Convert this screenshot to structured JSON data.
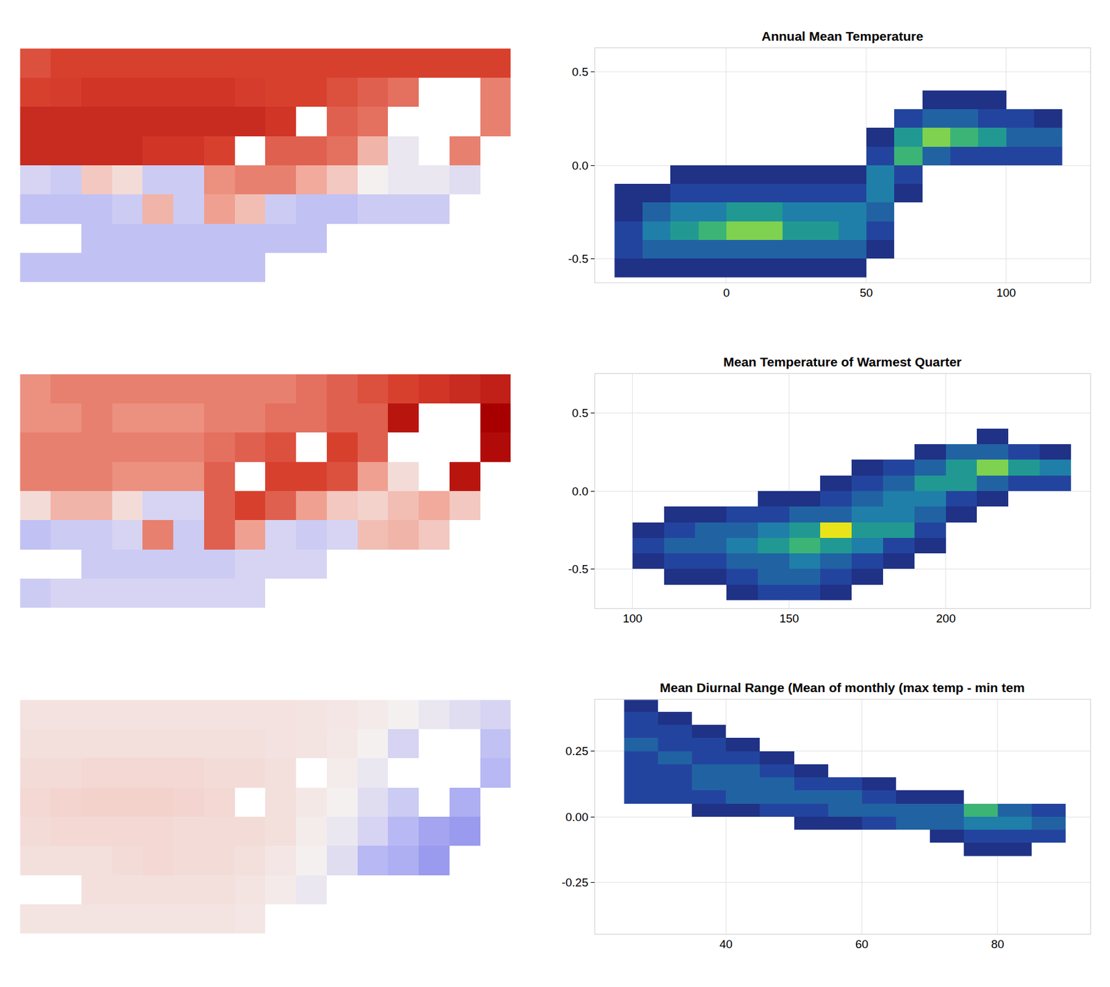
{
  "chart_data": [
    {
      "type": "map",
      "tick_labels": false,
      "grid": false,
      "zlim": [
        -1,
        1
      ],
      "cells": [
        [
          0.65,
          0.7,
          0.7,
          0.7,
          0.7,
          0.7,
          0.7,
          0.7,
          0.7,
          0.7,
          0.7,
          0.7,
          0.7,
          0.7,
          0.7,
          0.7
        ],
        [
          0.7,
          0.72,
          0.75,
          0.75,
          0.75,
          0.75,
          0.75,
          0.72,
          0.7,
          0.7,
          0.65,
          0.6,
          0.55,
          null,
          null,
          0.5
        ],
        [
          0.8,
          0.8,
          0.8,
          0.8,
          0.8,
          0.8,
          0.8,
          0.8,
          0.75,
          null,
          0.6,
          0.55,
          null,
          null,
          null,
          0.5
        ],
        [
          0.8,
          0.8,
          0.8,
          0.8,
          0.75,
          0.75,
          0.7,
          null,
          0.6,
          0.6,
          0.55,
          0.3,
          -0.05,
          null,
          0.5,
          null
        ],
        [
          -0.15,
          -0.2,
          0.2,
          0.1,
          -0.2,
          -0.2,
          0.45,
          0.5,
          0.5,
          0.35,
          0.2,
          0.0,
          -0.05,
          -0.05,
          -0.1,
          null
        ],
        [
          -0.25,
          -0.25,
          -0.25,
          -0.2,
          0.3,
          -0.2,
          0.4,
          0.25,
          -0.2,
          -0.25,
          -0.25,
          -0.2,
          -0.2,
          -0.2,
          null,
          null
        ],
        [
          null,
          null,
          -0.25,
          -0.25,
          -0.25,
          -0.25,
          -0.25,
          -0.25,
          -0.25,
          -0.25,
          null,
          null,
          null,
          null,
          null,
          null
        ],
        [
          -0.25,
          -0.25,
          -0.25,
          -0.25,
          -0.25,
          -0.25,
          -0.25,
          -0.25,
          null,
          null,
          null,
          null,
          null,
          null,
          null,
          null
        ]
      ]
    },
    {
      "type": "density",
      "title": "Annual Mean Temperature",
      "grid": true,
      "zlim": [
        0,
        8
      ],
      "xlim": [
        -47,
        130
      ],
      "ylim": [
        -0.625,
        0.625
      ],
      "xticks": [
        0,
        50,
        100
      ],
      "yticks": [
        -0.5,
        {
          "value": 0,
          "label": "0.0"
        },
        0.5
      ],
      "x": [
        -35,
        -25,
        -15,
        -5,
        5,
        15,
        25,
        35,
        45,
        55,
        65,
        75,
        85,
        95,
        105,
        115
      ],
      "y": [
        -0.55,
        -0.45,
        -0.35,
        -0.25,
        -0.15,
        -0.05,
        0.05,
        0.15,
        0.25,
        0.35
      ],
      "cells": [
        [
          1,
          1,
          1,
          1,
          1,
          1,
          1,
          1,
          1,
          null,
          null,
          null,
          null,
          null,
          null,
          null
        ],
        [
          2,
          3,
          3,
          3,
          3,
          3,
          3,
          3,
          3,
          1,
          null,
          null,
          null,
          null,
          null,
          null
        ],
        [
          2,
          4,
          5,
          6,
          7,
          7,
          5,
          5,
          4,
          2,
          null,
          null,
          null,
          null,
          null,
          null
        ],
        [
          1,
          3,
          4,
          4,
          5,
          5,
          4,
          4,
          4,
          3,
          null,
          null,
          null,
          null,
          null,
          null
        ],
        [
          1,
          1,
          2,
          2,
          2,
          2,
          2,
          2,
          2,
          4,
          1,
          null,
          null,
          null,
          null,
          null
        ],
        [
          null,
          null,
          1,
          1,
          1,
          1,
          1,
          1,
          1,
          4,
          2,
          null,
          null,
          null,
          null,
          null
        ],
        [
          null,
          null,
          null,
          null,
          null,
          null,
          null,
          null,
          null,
          2,
          6,
          3,
          2,
          2,
          2,
          2
        ],
        [
          null,
          null,
          null,
          null,
          null,
          null,
          null,
          null,
          null,
          1,
          5,
          7,
          6,
          5,
          3,
          3
        ],
        [
          null,
          null,
          null,
          null,
          null,
          null,
          null,
          null,
          null,
          null,
          2,
          3,
          3,
          2,
          2,
          1
        ],
        [
          null,
          null,
          null,
          null,
          null,
          null,
          null,
          null,
          null,
          null,
          null,
          1,
          1,
          1,
          null,
          null
        ]
      ]
    },
    {
      "type": "map",
      "tick_labels": false,
      "grid": false,
      "zlim": [
        -1,
        1
      ],
      "cells": [
        [
          0.45,
          0.5,
          0.5,
          0.5,
          0.5,
          0.5,
          0.5,
          0.5,
          0.5,
          0.55,
          0.6,
          0.65,
          0.7,
          0.75,
          0.8,
          0.85
        ],
        [
          0.45,
          0.45,
          0.5,
          0.45,
          0.45,
          0.45,
          0.5,
          0.5,
          0.55,
          0.55,
          0.6,
          0.6,
          0.9,
          null,
          null,
          1.0
        ],
        [
          0.5,
          0.5,
          0.5,
          0.5,
          0.5,
          0.5,
          0.55,
          0.6,
          0.65,
          null,
          0.7,
          0.6,
          null,
          null,
          null,
          0.95
        ],
        [
          0.5,
          0.5,
          0.5,
          0.45,
          0.45,
          0.45,
          0.6,
          null,
          0.7,
          0.7,
          0.65,
          0.4,
          0.1,
          null,
          0.9,
          null
        ],
        [
          0.1,
          0.3,
          0.3,
          0.1,
          -0.15,
          -0.15,
          0.6,
          0.7,
          0.6,
          0.4,
          0.2,
          0.15,
          0.25,
          0.35,
          0.2,
          null
        ],
        [
          -0.25,
          -0.2,
          -0.2,
          -0.15,
          0.5,
          -0.2,
          0.6,
          0.4,
          -0.15,
          -0.2,
          -0.15,
          0.25,
          0.3,
          0.2,
          null,
          null
        ],
        [
          null,
          null,
          -0.2,
          -0.2,
          -0.2,
          -0.2,
          -0.2,
          -0.15,
          -0.15,
          -0.15,
          null,
          null,
          null,
          null,
          null,
          null
        ],
        [
          -0.2,
          -0.15,
          -0.15,
          -0.15,
          -0.15,
          -0.15,
          -0.15,
          -0.15,
          null,
          null,
          null,
          null,
          null,
          null,
          null,
          null
        ]
      ]
    },
    {
      "type": "density",
      "title": "Mean Temperature of Warmest Quarter",
      "grid": true,
      "zlim": [
        0,
        8
      ],
      "xlim": [
        88,
        246
      ],
      "ylim": [
        -0.75,
        0.75
      ],
      "xticks": [
        100,
        150,
        200
      ],
      "yticks": [
        -0.5,
        {
          "value": 0,
          "label": "0.0"
        },
        0.5
      ],
      "x": [
        105,
        115,
        125,
        135,
        145,
        155,
        165,
        175,
        185,
        195,
        205,
        215,
        225,
        235
      ],
      "y": [
        -0.65,
        -0.55,
        -0.45,
        -0.35,
        -0.25,
        -0.15,
        -0.05,
        0.05,
        0.15,
        0.25,
        0.35
      ],
      "cells": [
        [
          null,
          null,
          null,
          1,
          2,
          2,
          1,
          null,
          null,
          null,
          null,
          null,
          null,
          null
        ],
        [
          null,
          1,
          1,
          2,
          3,
          3,
          2,
          1,
          null,
          null,
          null,
          null,
          null,
          null
        ],
        [
          1,
          2,
          2,
          3,
          3,
          4,
          3,
          2,
          1,
          null,
          null,
          null,
          null,
          null
        ],
        [
          2,
          3,
          3,
          4,
          5,
          6,
          5,
          4,
          2,
          1,
          null,
          null,
          null,
          null
        ],
        [
          1,
          2,
          3,
          3,
          4,
          5,
          8,
          5,
          5,
          2,
          null,
          null,
          null,
          null
        ],
        [
          null,
          1,
          1,
          2,
          2,
          3,
          3,
          4,
          4,
          3,
          1,
          null,
          null,
          null
        ],
        [
          null,
          null,
          null,
          null,
          1,
          1,
          2,
          3,
          4,
          4,
          2,
          1,
          null,
          null
        ],
        [
          null,
          null,
          null,
          null,
          null,
          null,
          1,
          2,
          3,
          5,
          5,
          3,
          2,
          2
        ],
        [
          null,
          null,
          null,
          null,
          null,
          null,
          null,
          1,
          2,
          3,
          5,
          7,
          5,
          4
        ],
        [
          null,
          null,
          null,
          null,
          null,
          null,
          null,
          null,
          null,
          1,
          3,
          3,
          2,
          1
        ],
        [
          null,
          null,
          null,
          null,
          null,
          null,
          null,
          null,
          null,
          null,
          null,
          1,
          null,
          null
        ]
      ]
    },
    {
      "type": "map",
      "tick_labels": false,
      "grid": false,
      "zlim": [
        -1,
        1
      ],
      "cells": [
        [
          0.07,
          0.07,
          0.07,
          0.07,
          0.07,
          0.07,
          0.07,
          0.07,
          0.07,
          0.06,
          0.05,
          0.03,
          0.0,
          -0.05,
          -0.1,
          -0.15
        ],
        [
          0.08,
          0.08,
          0.08,
          0.08,
          0.08,
          0.08,
          0.08,
          0.08,
          0.07,
          0.06,
          0.04,
          0.0,
          -0.15,
          null,
          null,
          -0.25
        ],
        [
          0.1,
          0.1,
          0.12,
          0.12,
          0.12,
          0.12,
          0.1,
          0.1,
          0.08,
          null,
          0.02,
          -0.05,
          null,
          null,
          null,
          -0.3
        ],
        [
          0.12,
          0.14,
          0.15,
          0.15,
          0.15,
          0.14,
          0.12,
          null,
          0.08,
          0.04,
          0.0,
          -0.1,
          -0.2,
          null,
          -0.35,
          null
        ],
        [
          0.1,
          0.12,
          0.12,
          0.12,
          0.12,
          0.1,
          0.1,
          0.1,
          0.08,
          0.02,
          -0.05,
          -0.15,
          -0.3,
          -0.4,
          -0.45,
          null
        ],
        [
          0.08,
          0.08,
          0.08,
          0.1,
          0.12,
          0.1,
          0.1,
          0.08,
          0.05,
          0.0,
          -0.1,
          -0.3,
          -0.35,
          -0.45,
          null,
          null
        ],
        [
          null,
          null,
          0.08,
          0.08,
          0.08,
          0.08,
          0.08,
          0.06,
          0.03,
          -0.05,
          null,
          null,
          null,
          null,
          null,
          null
        ],
        [
          0.06,
          0.06,
          0.06,
          0.06,
          0.06,
          0.06,
          0.06,
          0.05,
          null,
          null,
          null,
          null,
          null,
          null,
          null,
          null
        ]
      ]
    },
    {
      "type": "density",
      "title": "Mean Diurnal Range (Mean of monthly (max temp - min tem",
      "grid": true,
      "zlim": [
        0,
        8
      ],
      "xlim": [
        20.7,
        93.6
      ],
      "ylim": [
        -0.446,
        0.446
      ],
      "xticks": [
        40,
        60,
        80
      ],
      "yticks": [
        -0.25,
        {
          "value": 0,
          "label": "0.00"
        },
        0.25
      ],
      "x": [
        27.5,
        32.5,
        37.5,
        42.5,
        47.5,
        52.5,
        57.5,
        62.5,
        67.5,
        72.5,
        77.5,
        82.5,
        87.5
      ],
      "y": [
        -0.125,
        -0.075,
        -0.025,
        0.025,
        0.075,
        0.125,
        0.175,
        0.225,
        0.275,
        0.325,
        0.375,
        0.425
      ],
      "cells": [
        [
          null,
          null,
          null,
          null,
          null,
          null,
          null,
          null,
          null,
          null,
          1,
          1,
          null
        ],
        [
          null,
          null,
          null,
          null,
          null,
          null,
          null,
          null,
          null,
          1,
          2,
          2,
          2
        ],
        [
          null,
          null,
          null,
          null,
          null,
          1,
          1,
          2,
          3,
          3,
          4,
          4,
          3
        ],
        [
          null,
          null,
          1,
          1,
          2,
          2,
          3,
          3,
          3,
          3,
          6,
          3,
          2
        ],
        [
          2,
          2,
          2,
          3,
          3,
          3,
          3,
          2,
          1,
          1,
          null,
          null,
          null
        ],
        [
          2,
          2,
          3,
          3,
          3,
          2,
          2,
          1,
          null,
          null,
          null,
          null,
          null
        ],
        [
          2,
          2,
          3,
          3,
          2,
          1,
          null,
          null,
          null,
          null,
          null,
          null,
          null
        ],
        [
          2,
          3,
          2,
          2,
          1,
          null,
          null,
          null,
          null,
          null,
          null,
          null,
          null
        ],
        [
          3,
          2,
          2,
          1,
          null,
          null,
          null,
          null,
          null,
          null,
          null,
          null,
          null
        ],
        [
          2,
          2,
          1,
          null,
          null,
          null,
          null,
          null,
          null,
          null,
          null,
          null,
          null
        ],
        [
          2,
          1,
          null,
          null,
          null,
          null,
          null,
          null,
          null,
          null,
          null,
          null,
          null
        ],
        [
          1,
          null,
          null,
          null,
          null,
          null,
          null,
          null,
          null,
          null,
          null,
          null,
          null
        ]
      ]
    }
  ]
}
